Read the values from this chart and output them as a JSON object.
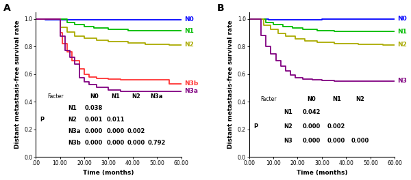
{
  "panel_A": {
    "label": "A",
    "curves": {
      "N0": {
        "color": "#0000FF",
        "x": [
          0,
          4,
          4,
          60
        ],
        "y": [
          1.0,
          1.0,
          0.995,
          0.995
        ]
      },
      "N1": {
        "color": "#00BB00",
        "x": [
          0,
          13,
          13,
          16,
          16,
          20,
          20,
          24,
          24,
          30,
          30,
          38,
          38,
          60
        ],
        "y": [
          1.0,
          1.0,
          0.975,
          0.975,
          0.96,
          0.96,
          0.945,
          0.945,
          0.935,
          0.935,
          0.925,
          0.925,
          0.915,
          0.915
        ]
      },
      "N2": {
        "color": "#AAAA00",
        "x": [
          0,
          10,
          10,
          13,
          13,
          16,
          16,
          20,
          20,
          25,
          25,
          30,
          30,
          38,
          38,
          45,
          45,
          55,
          55,
          60
        ],
        "y": [
          1.0,
          1.0,
          0.94,
          0.94,
          0.905,
          0.905,
          0.875,
          0.875,
          0.86,
          0.86,
          0.845,
          0.845,
          0.835,
          0.835,
          0.825,
          0.825,
          0.818,
          0.818,
          0.812,
          0.812
        ]
      },
      "N3b": {
        "color": "#FF3333",
        "x": [
          0,
          10,
          10,
          11,
          11,
          13,
          13,
          15,
          15,
          18,
          18,
          20,
          20,
          22,
          22,
          25,
          25,
          30,
          30,
          35,
          35,
          55,
          55,
          60
        ],
        "y": [
          1.0,
          1.0,
          0.9,
          0.9,
          0.82,
          0.82,
          0.76,
          0.76,
          0.7,
          0.7,
          0.64,
          0.64,
          0.6,
          0.6,
          0.58,
          0.58,
          0.57,
          0.57,
          0.565,
          0.565,
          0.56,
          0.56,
          0.53,
          0.53
        ]
      },
      "N3a": {
        "color": "#800080",
        "x": [
          0,
          10,
          10,
          12,
          12,
          14,
          14,
          16,
          16,
          18,
          18,
          20,
          20,
          22,
          22,
          25,
          25,
          30,
          30,
          35,
          35,
          60
        ],
        "y": [
          1.0,
          1.0,
          0.875,
          0.875,
          0.77,
          0.77,
          0.72,
          0.72,
          0.675,
          0.675,
          0.575,
          0.575,
          0.545,
          0.545,
          0.525,
          0.525,
          0.505,
          0.505,
          0.485,
          0.485,
          0.475,
          0.475
        ]
      }
    },
    "legend_order": [
      "N0",
      "N1",
      "N2",
      "N3b",
      "N3a"
    ],
    "table_header": [
      "Facter",
      "N0",
      "N1",
      "N2",
      "N3a"
    ],
    "table_rows": [
      [
        "N1",
        "0.038",
        "",
        "",
        ""
      ],
      [
        "N2",
        "0.001",
        "0.011",
        "",
        ""
      ],
      [
        "N3a",
        "0.000",
        "0.000",
        "0.002",
        ""
      ],
      [
        "N3b",
        "0.000",
        "0.000",
        "0.000",
        "0.792"
      ]
    ],
    "p_row_index": 1,
    "xlabel": "Time (months)",
    "ylabel": "Distant metastasis-free survival rate",
    "xlim": [
      0,
      60
    ],
    "ylim": [
      0.0,
      1.05
    ],
    "xticks": [
      0,
      10,
      20,
      30,
      40,
      50,
      60
    ],
    "xticklabels": [
      ".00",
      "10.00",
      "20.00",
      "30.00",
      "40.00",
      "50.00",
      "60.00"
    ],
    "yticks": [
      0.0,
      0.2,
      0.4,
      0.6,
      0.8,
      1.0
    ]
  },
  "panel_B": {
    "label": "B",
    "curves": {
      "N0": {
        "color": "#0000FF",
        "x": [
          0,
          8,
          8,
          30,
          30,
          60
        ],
        "y": [
          1.0,
          1.0,
          0.995,
          0.995,
          1.0,
          1.0
        ]
      },
      "N1": {
        "color": "#00BB00",
        "x": [
          0,
          7,
          7,
          10,
          10,
          14,
          14,
          18,
          18,
          22,
          22,
          28,
          28,
          35,
          35,
          60
        ],
        "y": [
          1.0,
          1.0,
          0.975,
          0.975,
          0.96,
          0.96,
          0.945,
          0.945,
          0.935,
          0.935,
          0.925,
          0.925,
          0.915,
          0.915,
          0.908,
          0.908
        ]
      },
      "N2": {
        "color": "#AAAA00",
        "x": [
          0,
          6,
          6,
          9,
          9,
          12,
          12,
          15,
          15,
          19,
          19,
          23,
          23,
          28,
          28,
          35,
          35,
          45,
          45,
          55,
          55,
          60
        ],
        "y": [
          1.0,
          1.0,
          0.955,
          0.955,
          0.925,
          0.925,
          0.895,
          0.895,
          0.875,
          0.875,
          0.855,
          0.855,
          0.842,
          0.842,
          0.832,
          0.832,
          0.822,
          0.822,
          0.816,
          0.816,
          0.812,
          0.812
        ]
      },
      "N3": {
        "color": "#800080",
        "x": [
          0,
          5,
          5,
          7,
          7,
          9,
          9,
          11,
          11,
          13,
          13,
          15,
          15,
          17,
          17,
          19,
          19,
          22,
          22,
          26,
          26,
          30,
          30,
          35,
          35,
          60
        ],
        "y": [
          1.0,
          1.0,
          0.88,
          0.88,
          0.8,
          0.8,
          0.745,
          0.745,
          0.7,
          0.7,
          0.658,
          0.658,
          0.625,
          0.625,
          0.595,
          0.595,
          0.575,
          0.575,
          0.565,
          0.565,
          0.558,
          0.558,
          0.553,
          0.553,
          0.55,
          0.55
        ]
      }
    },
    "legend_order": [
      "N0",
      "N1",
      "N2",
      "N3"
    ],
    "table_header": [
      "Facter",
      "N0",
      "N1",
      "N2"
    ],
    "table_rows": [
      [
        "N1",
        "0.042",
        "",
        ""
      ],
      [
        "N2",
        "0.000",
        "0.002",
        ""
      ],
      [
        "N3",
        "0.000",
        "0.000",
        "0.000"
      ]
    ],
    "p_row_index": 1,
    "xlabel": "Time (months)",
    "ylabel": "Distant metastasis-free survival rate",
    "xlim": [
      0,
      60
    ],
    "ylim": [
      0.0,
      1.05
    ],
    "xticks": [
      0,
      10,
      20,
      30,
      40,
      50,
      60
    ],
    "xticklabels": [
      "0.00",
      "10.00",
      "20.00",
      "30.00",
      "40.00",
      "50.00",
      "60.00"
    ],
    "yticks": [
      0.0,
      0.2,
      0.4,
      0.6,
      0.8,
      1.0
    ]
  },
  "background_color": "#FFFFFF",
  "linewidth": 1.3,
  "fontsize_label": 6.5,
  "fontsize_tick": 5.5,
  "fontsize_legend": 6.5,
  "fontsize_panel": 10,
  "fontsize_table": 5.5,
  "fontsize_table_bold": 6.0
}
